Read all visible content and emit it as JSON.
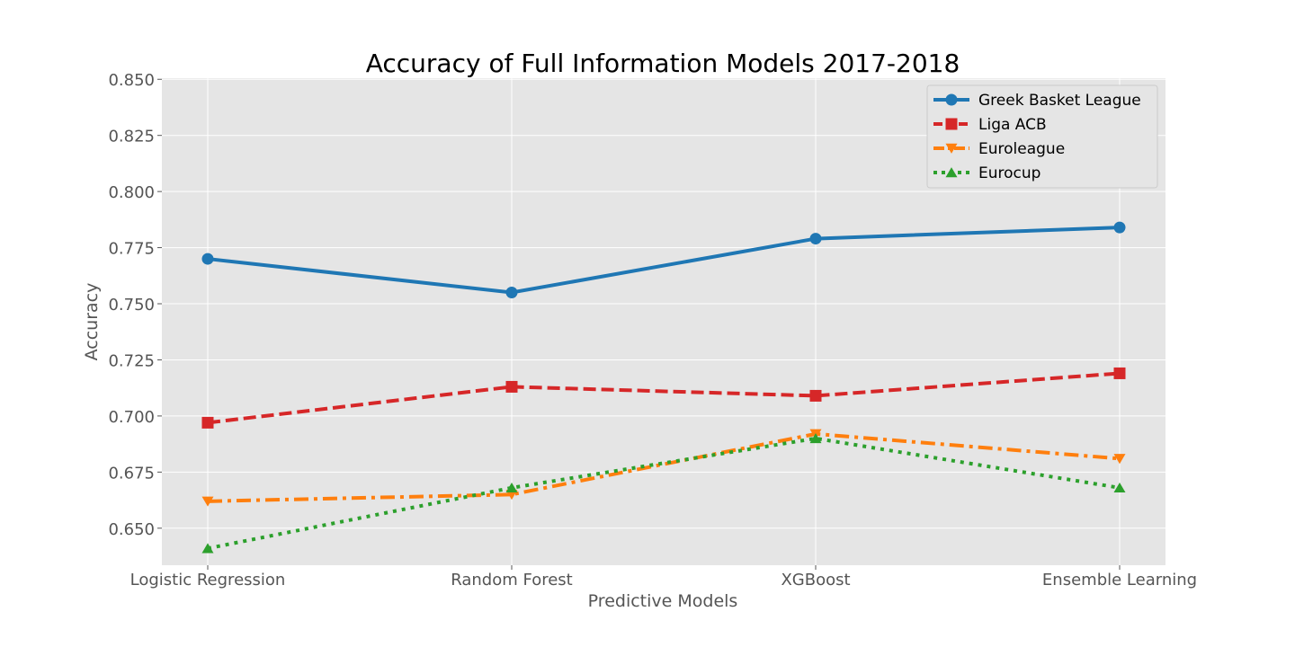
{
  "chart_data": {
    "type": "line",
    "title": "Accuracy of Full Information Models 2017-2018",
    "xlabel": "Predictive Models",
    "ylabel": "Accuracy",
    "categories": [
      "Logistic Regression",
      "Random Forest",
      "XGBoost",
      "Ensemble Learning"
    ],
    "ylim": [
      0.6335,
      0.8505
    ],
    "yticks": [
      0.65,
      0.675,
      0.7,
      0.725,
      0.75,
      0.775,
      0.8,
      0.825,
      0.85
    ],
    "ytick_labels": [
      "0.650",
      "0.675",
      "0.700",
      "0.725",
      "0.750",
      "0.775",
      "0.800",
      "0.825",
      "0.850"
    ],
    "grid": true,
    "legend_position": "top-right",
    "series": [
      {
        "name": "Greek Basket League",
        "values": [
          0.77,
          0.755,
          0.779,
          0.784
        ],
        "color": "#1f77b4",
        "line_style": "solid",
        "marker": "circle"
      },
      {
        "name": "Liga ACB",
        "values": [
          0.697,
          0.713,
          0.709,
          0.719
        ],
        "color": "#d62728",
        "line_style": "dashed",
        "marker": "square"
      },
      {
        "name": "Euroleague",
        "values": [
          0.662,
          0.665,
          0.692,
          0.681
        ],
        "color": "#ff7f0e",
        "line_style": "dashdot",
        "marker": "triangle-down"
      },
      {
        "name": "Eurocup",
        "values": [
          0.641,
          0.668,
          0.69,
          0.668
        ],
        "color": "#2ca02c",
        "line_style": "dotted",
        "marker": "triangle-up"
      }
    ]
  }
}
